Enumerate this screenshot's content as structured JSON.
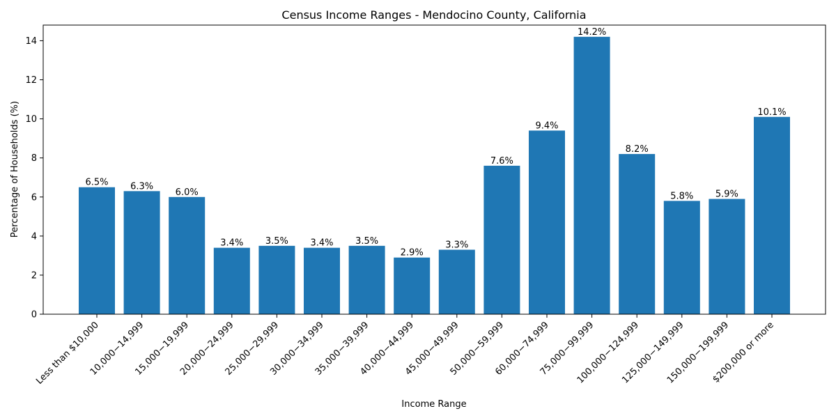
{
  "chart_data": {
    "type": "bar",
    "title": "Census Income Ranges - Mendocino County, California",
    "xlabel": "Income Range",
    "ylabel": "Percentage of Households (%)",
    "ylim": [
      0,
      14.8
    ],
    "yticks": [
      0,
      2,
      4,
      6,
      8,
      10,
      12,
      14
    ],
    "grid": false,
    "color": "#1f77b4",
    "categories": [
      "Less than $10,000",
      "10,000−14,999",
      "15,000−19,999",
      "20,000−24,999",
      "25,000−29,999",
      "30,000−34,999",
      "35,000−39,999",
      "40,000−44,999",
      "45,000−49,999",
      "50,000−59,999",
      "60,000−74,999",
      "75,000−99,999",
      "100,000−124,999",
      "125,000−149,999",
      "150,000−199,999",
      "$200,000 or more"
    ],
    "values": [
      6.5,
      6.3,
      6.0,
      3.4,
      3.5,
      3.4,
      3.5,
      2.9,
      3.3,
      7.6,
      9.4,
      14.2,
      8.2,
      5.8,
      5.9,
      10.1
    ],
    "value_labels": [
      "6.5%",
      "6.3%",
      "6.0%",
      "3.4%",
      "3.5%",
      "3.4%",
      "3.5%",
      "2.9%",
      "3.3%",
      "7.6%",
      "9.4%",
      "14.2%",
      "8.2%",
      "5.8%",
      "5.9%",
      "10.1%"
    ]
  }
}
